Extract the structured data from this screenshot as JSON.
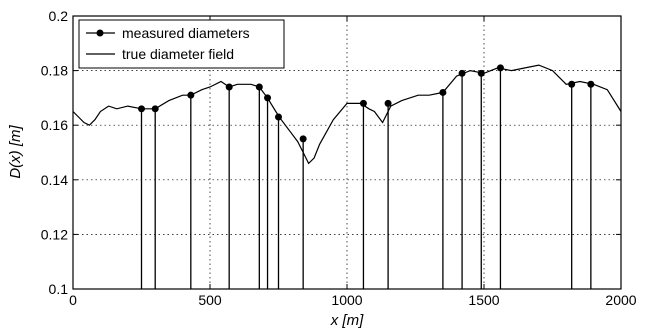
{
  "chart_data": {
    "type": "line",
    "xlabel": "x [m]",
    "ylabel": "D(x) [m]",
    "xlim": [
      0,
      2000
    ],
    "ylim": [
      0.1,
      0.2
    ],
    "x_ticks": [
      0,
      500,
      1000,
      1500,
      2000
    ],
    "y_ticks": [
      0.1,
      0.12,
      0.14,
      0.16,
      0.18,
      0.2
    ],
    "x_tick_labels": [
      "0",
      "500",
      "1000",
      "1500",
      "2000"
    ],
    "y_tick_labels": [
      "0.1",
      "0.12",
      "0.14",
      "0.16",
      "0.18",
      "0.2"
    ],
    "grid": true,
    "legend_position": "top-left",
    "legend": [
      {
        "label": "measured diameters",
        "style": "line-marker"
      },
      {
        "label": "true diameter field",
        "style": "line"
      }
    ],
    "series": [
      {
        "name": "true diameter field",
        "x": [
          0,
          20,
          40,
          60,
          80,
          100,
          130,
          160,
          200,
          250,
          300,
          350,
          400,
          430,
          470,
          500,
          540,
          570,
          600,
          650,
          680,
          710,
          740,
          760,
          790,
          820,
          840,
          860,
          880,
          900,
          950,
          1000,
          1050,
          1080,
          1100,
          1130,
          1160,
          1200,
          1260,
          1300,
          1350,
          1400,
          1450,
          1500,
          1550,
          1600,
          1650,
          1700,
          1750,
          1800,
          1850,
          1900,
          1950,
          2000
        ],
        "values": [
          0.165,
          0.163,
          0.161,
          0.16,
          0.162,
          0.165,
          0.167,
          0.166,
          0.167,
          0.166,
          0.166,
          0.169,
          0.171,
          0.171,
          0.173,
          0.174,
          0.176,
          0.174,
          0.175,
          0.175,
          0.174,
          0.17,
          0.165,
          0.162,
          0.158,
          0.154,
          0.15,
          0.146,
          0.148,
          0.153,
          0.162,
          0.168,
          0.168,
          0.166,
          0.165,
          0.161,
          0.167,
          0.169,
          0.171,
          0.171,
          0.172,
          0.178,
          0.18,
          0.179,
          0.181,
          0.18,
          0.181,
          0.182,
          0.18,
          0.175,
          0.176,
          0.175,
          0.173,
          0.165
        ]
      },
      {
        "name": "measured diameters",
        "x": [
          250,
          300,
          430,
          570,
          680,
          710,
          750,
          840,
          1060,
          1150,
          1350,
          1420,
          1490,
          1560,
          1820,
          1890
        ],
        "values": [
          0.166,
          0.166,
          0.171,
          0.174,
          0.174,
          0.17,
          0.163,
          0.155,
          0.168,
          0.168,
          0.172,
          0.179,
          0.179,
          0.181,
          0.175,
          0.175
        ]
      }
    ]
  }
}
